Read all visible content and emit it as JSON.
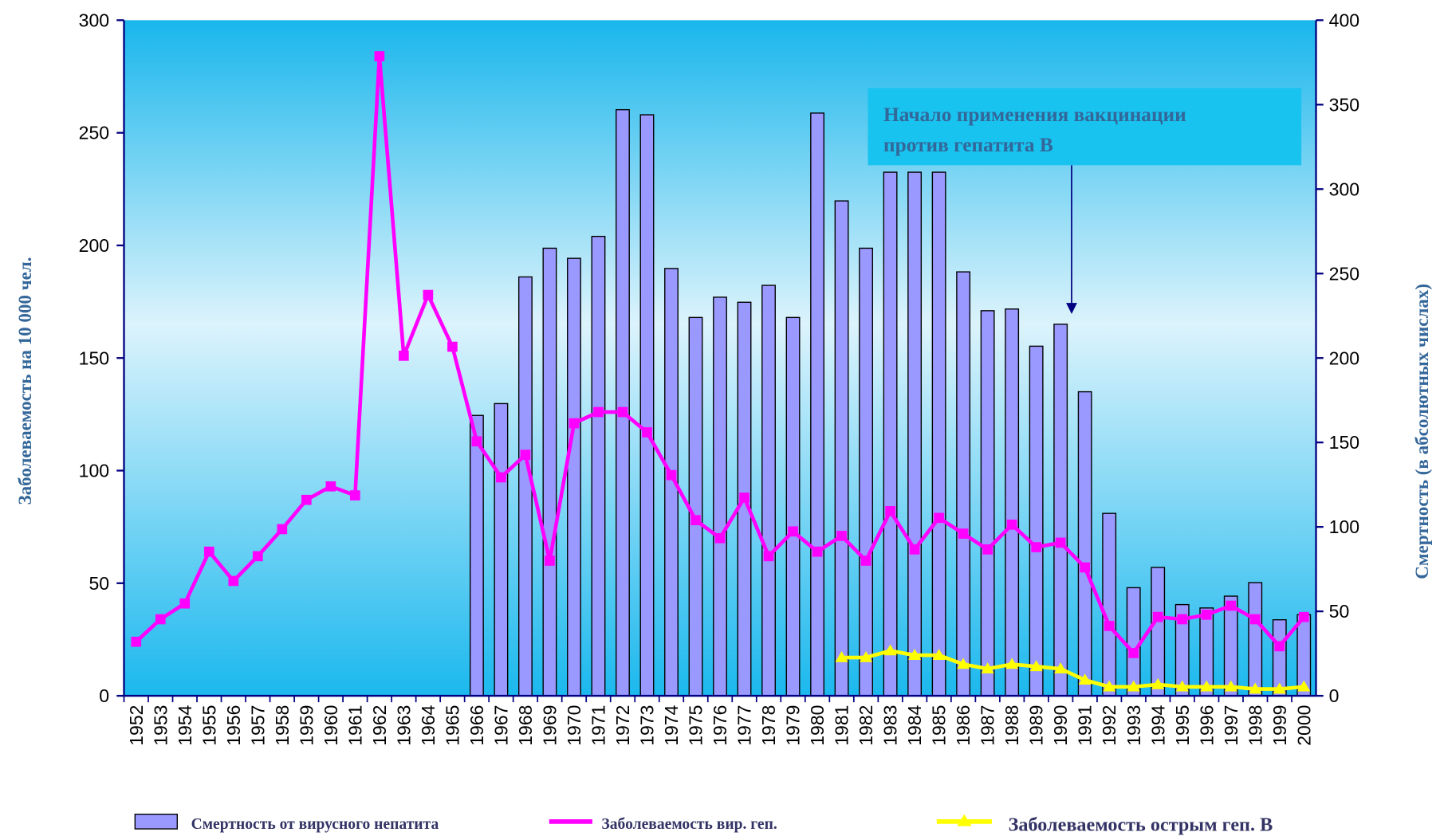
{
  "chart_data": {
    "type": "bar",
    "y_label": "Заболеваемость на 10 000 чел.",
    "y2_label": "Смертность (в абсолютных числах)",
    "annotation": [
      "Начало применения вакцинации",
      "против гепатита В"
    ],
    "annotation_category": "1990",
    "categories": [
      "1952",
      "1953",
      "1954",
      "1955",
      "1956",
      "1957",
      "1958",
      "1959",
      "1960",
      "1961",
      "1962",
      "1963",
      "1964",
      "1965",
      "1966",
      "1967",
      "1968",
      "1969",
      "1970",
      "1971",
      "1972",
      "1973",
      "1974",
      "1975",
      "1976",
      "1977",
      "1978",
      "1979",
      "1980",
      "1981",
      "1982",
      "1983",
      "1984",
      "1985",
      "1986",
      "1987",
      "1988",
      "1989",
      "1990",
      "1991",
      "1992",
      "1993",
      "1994",
      "1995",
      "1996",
      "1997",
      "1998",
      "1999",
      "2000"
    ],
    "ylim": [
      0,
      300
    ],
    "yticks": [
      0,
      50,
      100,
      150,
      200,
      250,
      300
    ],
    "y2lim": [
      0,
      400
    ],
    "y2ticks": [
      0,
      50,
      100,
      150,
      200,
      250,
      300,
      350,
      400
    ],
    "series": [
      {
        "name": "Смертность от вирусного непатита",
        "type": "bar",
        "axis": "y2",
        "color": "#9999ff",
        "values": [
          null,
          null,
          null,
          null,
          null,
          null,
          null,
          null,
          null,
          null,
          null,
          null,
          null,
          null,
          166,
          173,
          248,
          265,
          259,
          272,
          347,
          344,
          253,
          224,
          236,
          233,
          243,
          224,
          345,
          293,
          265,
          310,
          310,
          310,
          251,
          228,
          229,
          207,
          220,
          180,
          108,
          64,
          76,
          54,
          52,
          59,
          67,
          45,
          48
        ]
      },
      {
        "name": "Заболеваемость вир. геп.",
        "type": "line",
        "marker": "square",
        "color": "#ff00ff",
        "values": [
          24,
          34,
          41,
          64,
          51,
          62,
          74,
          87,
          93,
          89,
          284,
          151,
          178,
          155,
          113,
          97,
          107,
          60,
          121,
          126,
          126,
          117,
          98,
          78,
          70,
          88,
          62,
          73,
          64,
          71,
          60,
          82,
          65,
          79,
          72,
          65,
          76,
          66,
          68,
          57,
          31,
          19,
          35,
          34,
          36,
          40,
          34,
          22,
          35
        ]
      },
      {
        "name": "Заболеваемость острым геп. В",
        "type": "line",
        "marker": "triangle",
        "color": "#ffff00",
        "values": [
          null,
          null,
          null,
          null,
          null,
          null,
          null,
          null,
          null,
          null,
          null,
          null,
          null,
          null,
          null,
          null,
          null,
          null,
          null,
          null,
          null,
          null,
          null,
          null,
          null,
          null,
          null,
          null,
          null,
          17,
          17,
          20,
          18,
          18,
          14,
          12,
          14,
          13,
          12,
          7,
          4,
          4,
          5,
          4,
          4,
          4,
          3,
          3,
          4
        ]
      }
    ]
  }
}
